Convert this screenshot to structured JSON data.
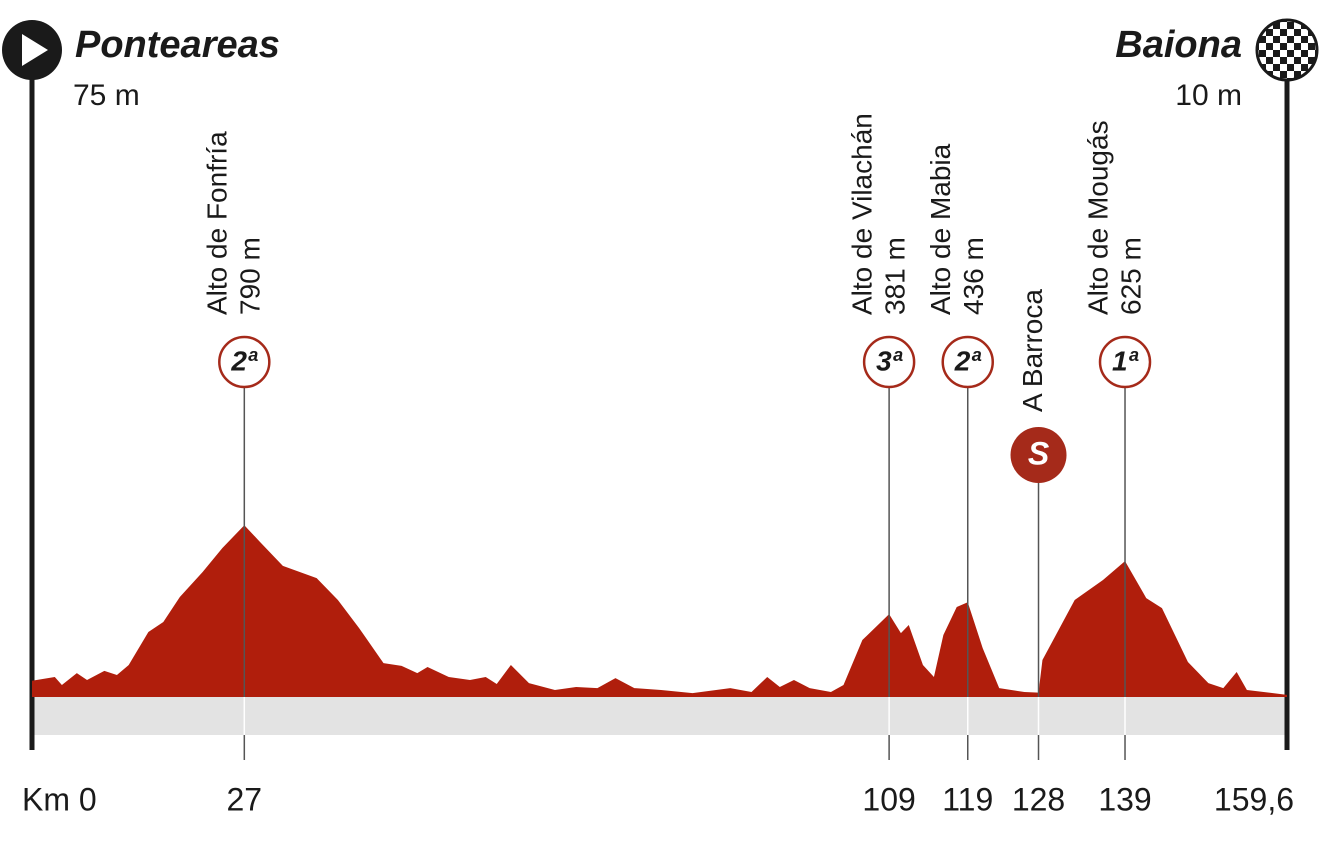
{
  "chart_data": {
    "type": "area",
    "color": "#b01e0c",
    "start": {
      "name": "Ponteareas",
      "elevation": "75 m"
    },
    "finish": {
      "name": "Baiona",
      "elevation": "10 m"
    },
    "x": [
      0,
      2.9,
      3.8,
      5.7,
      7.0,
      9.2,
      10.8,
      12.3,
      14.8,
      16.7,
      18.8,
      21.7,
      24.2,
      27,
      29.0,
      31.9,
      36.2,
      38.9,
      41.6,
      44.7,
      47.0,
      49.0,
      50.3,
      53.0,
      55.7,
      57.7,
      59.1,
      60.9,
      63.2,
      66.5,
      69.2,
      71.9,
      74.2,
      76.6,
      80.0,
      84.0,
      88.8,
      91.5,
      93.5,
      95.1,
      96.9,
      98.9,
      101.6,
      103.2,
      105.6,
      109,
      110.5,
      111.5,
      113.3,
      114.7,
      115.9,
      117.6,
      119,
      120.9,
      123.0,
      126.2,
      128,
      128.5,
      132.6,
      136.2,
      139,
      141.7,
      143.7,
      147.0,
      149.6,
      151.5,
      153.2,
      154.5,
      159.6
    ],
    "values": [
      75,
      92,
      55,
      110,
      78,
      120,
      101,
      147,
      299,
      345,
      460,
      575,
      685,
      790,
      713,
      603,
      547,
      446,
      317,
      156,
      143,
      110,
      138,
      92,
      78,
      92,
      60,
      147,
      64,
      32,
      46,
      41,
      87,
      41,
      32,
      18,
      41,
      23,
      92,
      46,
      78,
      41,
      23,
      55,
      262,
      381,
      294,
      331,
      147,
      92,
      285,
      414,
      436,
      225,
      41,
      23,
      20,
      170,
      446,
      538,
      625,
      455,
      409,
      161,
      64,
      41,
      115,
      32,
      10
    ],
    "xlim": [
      0,
      159.6
    ],
    "ylim": [
      0,
      2976
    ],
    "xticks": [
      {
        "value": 0,
        "label": "Km 0"
      },
      27,
      109,
      119,
      128,
      139,
      {
        "value": 159.6,
        "label": "159,6"
      }
    ],
    "climbs": [
      {
        "name": "Alto de Fonfría",
        "elevation": "790 m",
        "category": "2ª",
        "km": 27
      },
      {
        "name": "Alto de Vilachán",
        "elevation": "381 m",
        "category": "3ª",
        "km": 109
      },
      {
        "name": "Alto de Mabia",
        "elevation": "436 m",
        "category": "2ª",
        "km": 119
      },
      {
        "name": "Alto de Mougás",
        "elevation": "625 m",
        "category": "1ª",
        "km": 139
      }
    ],
    "sprints": [
      {
        "name": "A Barroca",
        "symbol": "S",
        "km": 128
      }
    ]
  }
}
